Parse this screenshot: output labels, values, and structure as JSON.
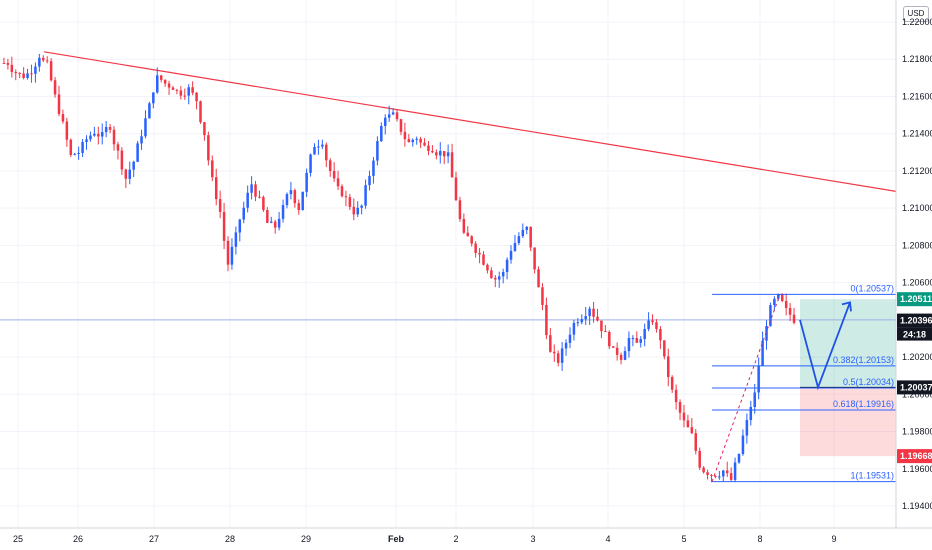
{
  "currency": "USD",
  "chart_data": {
    "type": "candlestick",
    "y_axis_ticks": [
      "1.22000",
      "1.21800",
      "1.21600",
      "1.21400",
      "1.21200",
      "1.21000",
      "1.20800",
      "1.20600",
      "1.20400",
      "1.20200",
      "1.20000",
      "1.19800",
      "1.19600",
      "1.19400"
    ],
    "ylim": [
      1.193,
      1.222
    ],
    "x_axis_ticks": [
      "25",
      "26",
      "27",
      "28",
      "29",
      "Feb",
      "2",
      "3",
      "4",
      "5",
      "8",
      "9"
    ],
    "last_price": "1.20396",
    "countdown": "24:18",
    "price_tags": [
      {
        "value": "1.20511",
        "color": "#089981"
      },
      {
        "value": "1.20396",
        "color": "#131722"
      },
      {
        "value": "1.20037",
        "color": "#131722"
      },
      {
        "value": "1.19668",
        "color": "#f23645"
      }
    ],
    "trendline": {
      "start_x": "25",
      "start_y": 1.2184,
      "end_x": "9",
      "end_y": 1.2109,
      "color": "#f23645"
    },
    "horizontal_line": 1.204,
    "fib_levels": [
      {
        "label": "0(1.20537)",
        "value": 1.20537
      },
      {
        "label": "0.382(1.20153)",
        "value": 1.20153
      },
      {
        "label": "0.5(1.20034)",
        "value": 1.20034
      },
      {
        "label": "0.618(1.19916)",
        "value": 1.19916
      },
      {
        "label": "1(1.19531)",
        "value": 1.19531
      }
    ],
    "position": {
      "entry": 1.20037,
      "take_profit": 1.20511,
      "stop_loss": 1.19668
    },
    "projected_path": [
      1.204,
      1.20037,
      1.20537
    ],
    "price_path": [
      1.2178,
      1.2173,
      1.2171,
      1.2174,
      1.2182,
      1.2177,
      1.216,
      1.2145,
      1.2128,
      1.213,
      1.2137,
      1.2141,
      1.2139,
      1.2144,
      1.213,
      1.2116,
      1.2125,
      1.214,
      1.2155,
      1.217,
      1.2167,
      1.2165,
      1.2162,
      1.2164,
      1.2158,
      1.214,
      1.2115,
      1.2098,
      1.207,
      1.2085,
      1.21,
      1.2113,
      1.2104,
      1.2092,
      1.209,
      1.21,
      1.211,
      1.21,
      1.2118,
      1.2134,
      1.2136,
      1.212,
      1.211,
      1.2105,
      1.2098,
      1.2101,
      1.2118,
      1.2135,
      1.215,
      1.215,
      1.2142,
      1.2135,
      1.2138,
      1.2133,
      1.2132,
      1.213,
      1.2128,
      1.2105,
      1.2085,
      1.2082,
      1.2075,
      1.2068,
      1.2062,
      1.2065,
      1.2078,
      1.2085,
      1.2089,
      1.2068,
      1.2048,
      1.2022,
      1.2018,
      1.2028,
      1.2038,
      1.2042,
      1.2047,
      1.204,
      1.2032,
      1.2023,
      1.202,
      1.203,
      1.2027,
      1.2034,
      1.204,
      1.203,
      1.201,
      1.1995,
      1.1985,
      1.1978,
      1.1962,
      1.1958,
      1.1957,
      1.1959,
      1.1954,
      1.1968,
      1.1985,
      1.2,
      1.2028,
      1.2046,
      1.2052,
      1.2045,
      1.204
    ]
  }
}
